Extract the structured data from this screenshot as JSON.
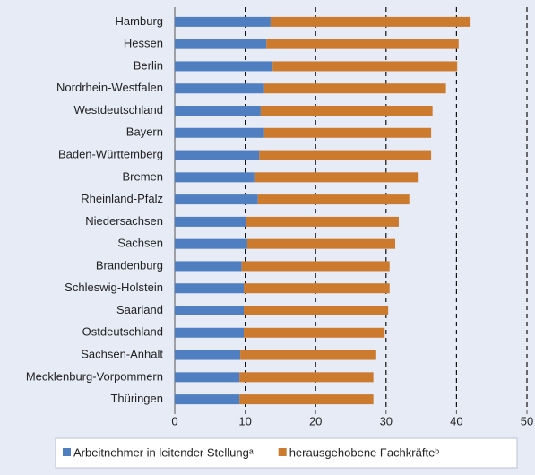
{
  "chart_data": {
    "type": "stacked-bar-horizontal",
    "categories": [
      "Hamburg",
      "Hessen",
      "Berlin",
      "Nordrhein-Westfalen",
      "Westdeutschland",
      "Bayern",
      "Baden-Württemberg",
      "Bremen",
      "Rheinland-Pfalz",
      "Niedersachsen",
      "Sachsen",
      "Brandenburg",
      "Schleswig-Holstein",
      "Saarland",
      "Ostdeutschland",
      "Sachsen-Anhalt",
      "Mecklenburg-Vorpommern",
      "Thüringen"
    ],
    "series": [
      {
        "name": "Arbeitnehmer in leitender Stellungᵃ",
        "color": "#4f7ec1",
        "values": [
          13.6,
          13.0,
          13.9,
          12.7,
          12.2,
          12.7,
          12.0,
          11.3,
          11.8,
          10.1,
          10.3,
          9.5,
          9.8,
          9.8,
          9.8,
          9.3,
          9.2,
          9.2
        ]
      },
      {
        "name": "herausgehobene Fachkräfteᵇ",
        "color": "#cc7a2e",
        "values": [
          28.4,
          27.3,
          26.2,
          25.8,
          24.4,
          23.7,
          24.4,
          23.2,
          21.5,
          21.7,
          21.0,
          21.0,
          20.7,
          20.5,
          20.0,
          19.3,
          19.0,
          19.0
        ]
      }
    ],
    "xlim": [
      0,
      50
    ],
    "xticks": [
      0,
      10,
      20,
      30,
      40,
      50
    ],
    "grid": true
  }
}
